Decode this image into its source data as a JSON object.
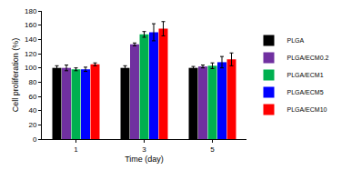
{
  "chart_data": {
    "type": "bar",
    "x_label": "Time (day)",
    "y_label": "Cell proliferation (%)",
    "categories": [
      "1",
      "3",
      "5"
    ],
    "series": [
      {
        "name": "PLGA",
        "color": "#000000",
        "values": [
          100,
          100,
          100
        ],
        "errors": [
          3,
          3,
          2
        ]
      },
      {
        "name": "PLGA/ECM0.2",
        "color": "#7030a0",
        "values": [
          100,
          133,
          102
        ],
        "errors": [
          4,
          2,
          2
        ]
      },
      {
        "name": "PLGA/ECM1",
        "color": "#00b050",
        "values": [
          98,
          147,
          103
        ],
        "errors": [
          2,
          4,
          4
        ]
      },
      {
        "name": "PLGA/ECM5",
        "color": "#0000ff",
        "values": [
          98,
          150,
          108
        ],
        "errors": [
          3,
          12,
          8
        ]
      },
      {
        "name": "PLGA/ECM10",
        "color": "#ff0000",
        "values": [
          105,
          155,
          112
        ],
        "errors": [
          2,
          10,
          9
        ]
      }
    ],
    "ylim": [
      0,
      180
    ],
    "yticks": [
      0,
      20,
      40,
      60,
      80,
      100,
      120,
      140,
      160,
      180
    ],
    "grid": false,
    "legend": "right"
  }
}
